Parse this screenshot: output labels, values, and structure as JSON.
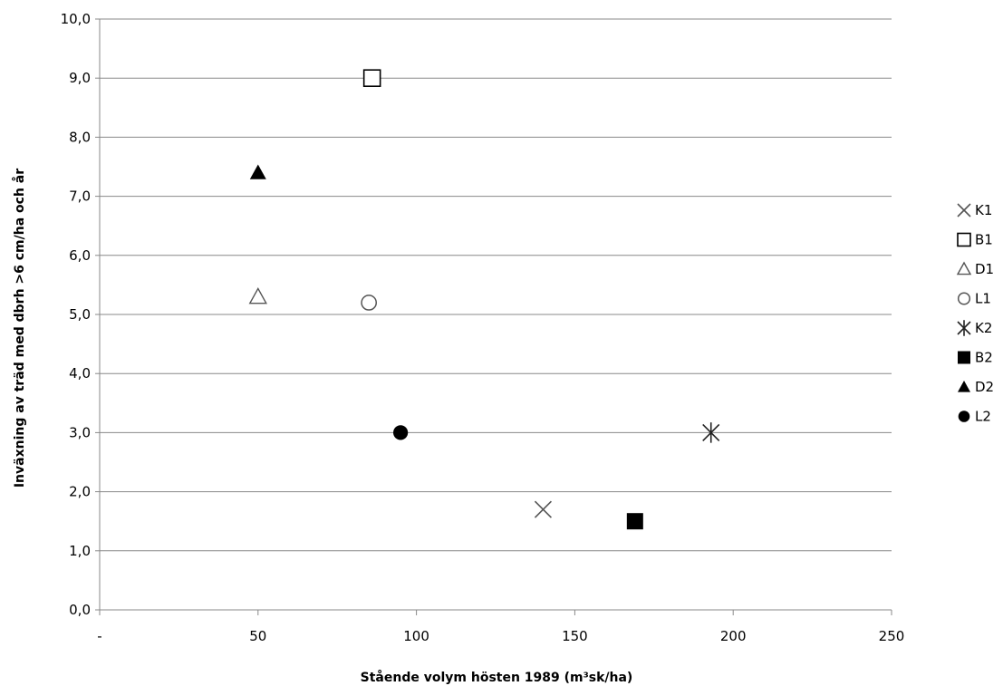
{
  "chart_data": {
    "type": "scatter",
    "title": "",
    "xlabel": "Stående volym hösten 1989 (m³sk/ha)",
    "ylabel": "Inväxning av träd med dbrh >6 cm/ha och år",
    "xlim": [
      0,
      250
    ],
    "ylim": [
      0,
      10
    ],
    "x_ticks": [
      0,
      50,
      100,
      150,
      200,
      250
    ],
    "x_tick_labels": [
      "-",
      "50",
      "100",
      "150",
      "200",
      "250"
    ],
    "y_ticks": [
      0,
      1,
      2,
      3,
      4,
      5,
      6,
      7,
      8,
      9,
      10
    ],
    "y_tick_labels": [
      "0,0",
      "1,0",
      "2,0",
      "3,0",
      "4,0",
      "5,0",
      "6,0",
      "7,0",
      "8,0",
      "9,0",
      "10,0"
    ],
    "grid": "horizontal",
    "legend_position": "right",
    "series": [
      {
        "name": "K1",
        "marker": "x",
        "color": "#555555",
        "x": [
          140
        ],
        "y": [
          1.7
        ]
      },
      {
        "name": "B1",
        "marker": "square-open",
        "color": "#000000",
        "x": [
          86
        ],
        "y": [
          9.0
        ]
      },
      {
        "name": "D1",
        "marker": "triangle-open",
        "color": "#555555",
        "x": [
          50
        ],
        "y": [
          5.3
        ]
      },
      {
        "name": "L1",
        "marker": "circle-open",
        "color": "#555555",
        "x": [
          85
        ],
        "y": [
          5.2
        ]
      },
      {
        "name": "K2",
        "marker": "star",
        "color": "#222222",
        "x": [
          193
        ],
        "y": [
          3.0
        ]
      },
      {
        "name": "B2",
        "marker": "square-filled",
        "color": "#000000",
        "x": [
          169
        ],
        "y": [
          1.5
        ]
      },
      {
        "name": "D2",
        "marker": "triangle-filled",
        "color": "#000000",
        "x": [
          50
        ],
        "y": [
          7.4
        ]
      },
      {
        "name": "L2",
        "marker": "circle-filled",
        "color": "#000000",
        "x": [
          95
        ],
        "y": [
          3.0
        ]
      }
    ]
  }
}
